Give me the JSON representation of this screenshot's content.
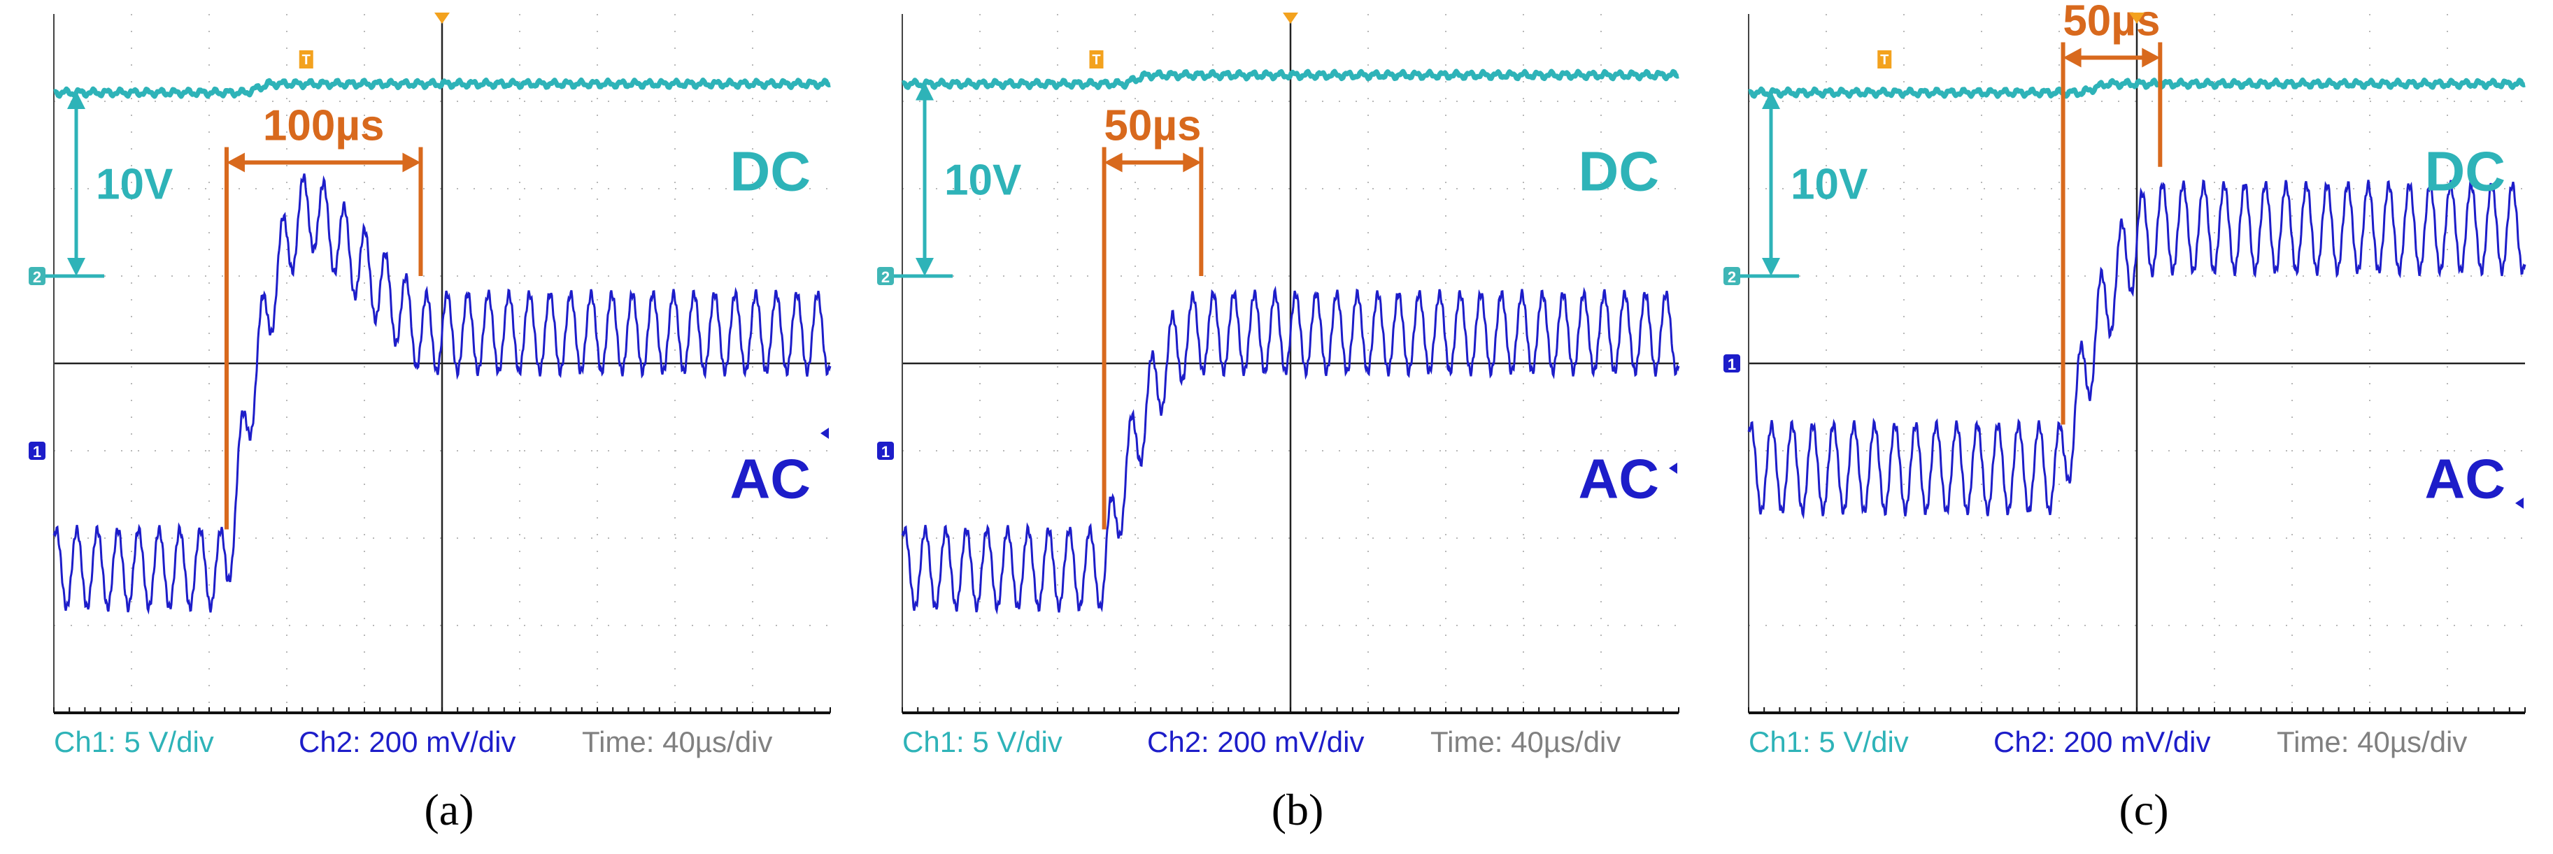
{
  "figure": {
    "panels": [
      {
        "caption": "(a)",
        "dc_label": "DC",
        "ac_label": "AC",
        "voltage_label": "10V",
        "time_label": "100µs",
        "ch1_scale": "Ch1: 5 V/div",
        "ch2_scale": "Ch2: 200 mV/div",
        "time_scale": "Time: 40µs/div",
        "ch1_marker": "2",
        "ch2_marker": "1",
        "trigger_marker": "T"
      },
      {
        "caption": "(b)",
        "dc_label": "DC",
        "ac_label": "AC",
        "voltage_label": "10V",
        "time_label": "50µs",
        "ch1_scale": "Ch1: 5 V/div",
        "ch2_scale": "Ch2: 200 mV/div",
        "time_scale": "Time: 40µs/div",
        "ch1_marker": "2",
        "ch2_marker": "1",
        "trigger_marker": "T"
      },
      {
        "caption": "(c)",
        "dc_label": "DC",
        "ac_label": "AC",
        "voltage_label": "10V",
        "time_label": "50µs",
        "ch1_scale": "Ch1: 5 V/div",
        "ch2_scale": "Ch2: 200 mV/div",
        "time_scale": "Time: 40µs/div",
        "ch1_marker": "2",
        "ch2_marker": "1",
        "trigger_marker": "T"
      }
    ]
  },
  "chart_data": [
    {
      "type": "line",
      "title": "(a)",
      "x_unit": "µs",
      "xlim": [
        -200,
        200
      ],
      "ylim": [
        -4,
        4
      ],
      "x_divisions": 10,
      "y_divisions": 8,
      "grid": true,
      "series": [
        {
          "name": "DC",
          "scale": "Ch1: 5 V/div",
          "color": "#2eb3b8",
          "level_before_div": 3.1,
          "level_after_div": 3.2,
          "ground_div": 1.0
        },
        {
          "name": "AC",
          "scale": "Ch2: 200 mV/div",
          "color": "#1d1dc9",
          "baseline_before_div": -2.35,
          "baseline_after_div": 0.35,
          "ripple_amplitude_div": 0.45,
          "ripple_period_us": 10.6,
          "step_start_us": -111,
          "overshoot_peak_div": 1.75,
          "settle_us": 100
        }
      ],
      "annotations": [
        {
          "text": "100µs",
          "from_us": -111,
          "to_us": -11,
          "color": "#d8691d"
        },
        {
          "text": "10V",
          "from_div": 1.0,
          "to_div": 3.0,
          "color": "#2eb3b8"
        }
      ]
    },
    {
      "type": "line",
      "title": "(b)",
      "x_unit": "µs",
      "xlim": [
        -200,
        200
      ],
      "ylim": [
        -4,
        4
      ],
      "x_divisions": 10,
      "y_divisions": 8,
      "grid": true,
      "series": [
        {
          "name": "DC",
          "scale": "Ch1: 5 V/div",
          "color": "#2eb3b8",
          "level_before_div": 3.2,
          "level_after_div": 3.3,
          "ground_div": 1.0
        },
        {
          "name": "AC",
          "scale": "Ch2: 200 mV/div",
          "color": "#1d1dc9",
          "baseline_before_div": -2.35,
          "baseline_after_div": 0.35,
          "ripple_amplitude_div": 0.45,
          "ripple_period_us": 10.6,
          "step_start_us": -96,
          "overshoot_peak_div": 0.0,
          "settle_us": 50
        }
      ],
      "annotations": [
        {
          "text": "50µs",
          "from_us": -96,
          "to_us": -46,
          "color": "#d8691d"
        },
        {
          "text": "10V",
          "from_div": 1.0,
          "to_div": 3.0,
          "color": "#2eb3b8"
        }
      ]
    },
    {
      "type": "line",
      "title": "(c)",
      "x_unit": "µs",
      "xlim": [
        -200,
        200
      ],
      "ylim": [
        -4,
        4
      ],
      "x_divisions": 10,
      "y_divisions": 8,
      "grid": true,
      "series": [
        {
          "name": "DC",
          "scale": "Ch1: 5 V/div",
          "color": "#2eb3b8",
          "level_before_div": 3.1,
          "level_after_div": 3.2,
          "ground_div": 1.0
        },
        {
          "name": "AC",
          "scale": "Ch2: 200 mV/div",
          "color": "#1d1dc9",
          "baseline_before_div": -1.2,
          "baseline_after_div": 1.55,
          "ripple_amplitude_div": 0.5,
          "ripple_period_us": 10.6,
          "step_start_us": -38,
          "overshoot_peak_div": 0.0,
          "settle_us": 50
        }
      ],
      "annotations": [
        {
          "text": "50µs",
          "from_us": -38,
          "to_us": 12,
          "color": "#d8691d"
        },
        {
          "text": "10V",
          "from_div": 1.0,
          "to_div": 3.0,
          "color": "#2eb3b8"
        }
      ]
    }
  ]
}
